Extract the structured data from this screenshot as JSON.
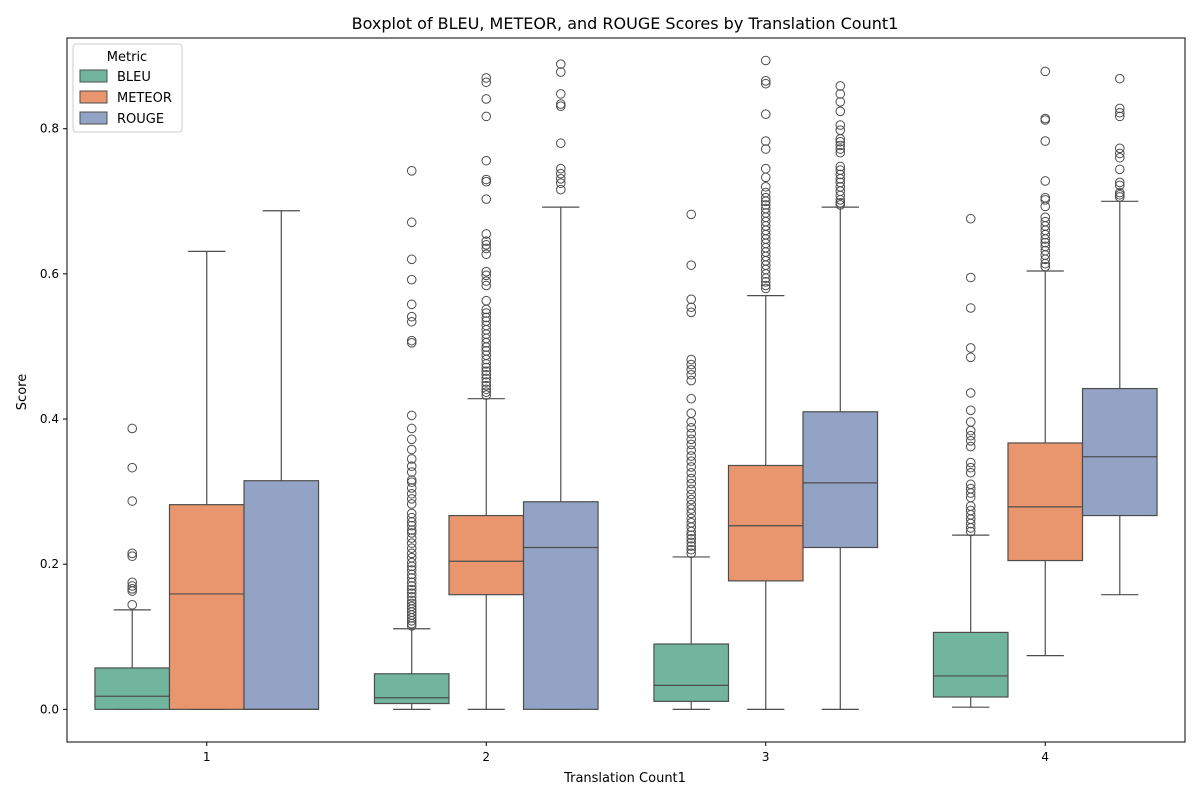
{
  "chart_data": {
    "type": "boxplot",
    "title": "Boxplot of BLEU, METEOR, and ROUGE Scores by Translation Count1",
    "xlabel": "Translation Count1",
    "ylabel": "Score",
    "categories": [
      "1",
      "2",
      "3",
      "4"
    ],
    "ylim": [
      -0.045,
      0.925
    ],
    "yticks": [
      0.0,
      0.2,
      0.4,
      0.6,
      0.8
    ],
    "ytick_labels": [
      "0.0",
      "0.2",
      "0.4",
      "0.6",
      "0.8"
    ],
    "grid": false,
    "legend": {
      "title": "Metric",
      "position": "top-left"
    },
    "series": [
      {
        "name": "BLEU",
        "color": "#72b59f",
        "boxes": [
          {
            "whisker_low": 0.0,
            "q1": 0.0,
            "median": 0.018,
            "q3": 0.057,
            "whisker_high": 0.137,
            "outliers": [
              0.387,
              0.333,
              0.287,
              0.215,
              0.211,
              0.175,
              0.17,
              0.166,
              0.163,
              0.144
            ]
          },
          {
            "whisker_low": 0.0,
            "q1": 0.008,
            "median": 0.016,
            "q3": 0.049,
            "whisker_high": 0.111,
            "outliers": [
              0.742,
              0.671,
              0.62,
              0.592,
              0.558,
              0.541,
              0.534,
              0.508,
              0.505,
              0.405,
              0.387,
              0.372,
              0.358,
              0.345,
              0.335,
              0.327,
              0.316,
              0.313,
              0.305,
              0.297,
              0.29,
              0.283,
              0.27,
              0.264,
              0.258,
              0.253,
              0.247,
              0.243,
              0.236,
              0.229,
              0.222,
              0.215,
              0.209,
              0.202,
              0.197,
              0.192,
              0.186,
              0.181,
              0.175,
              0.17,
              0.165,
              0.16,
              0.155,
              0.15,
              0.146,
              0.142,
              0.138,
              0.134,
              0.13,
              0.126,
              0.122,
              0.118,
              0.115
            ]
          },
          {
            "whisker_low": 0.0,
            "q1": 0.011,
            "median": 0.033,
            "q3": 0.09,
            "whisker_high": 0.21,
            "outliers": [
              0.682,
              0.612,
              0.565,
              0.554,
              0.547,
              0.482,
              0.475,
              0.468,
              0.461,
              0.453,
              0.428,
              0.408,
              0.396,
              0.388,
              0.38,
              0.372,
              0.365,
              0.357,
              0.349,
              0.342,
              0.334,
              0.326,
              0.318,
              0.311,
              0.303,
              0.296,
              0.289,
              0.282,
              0.276,
              0.27,
              0.263,
              0.257,
              0.251,
              0.245,
              0.24,
              0.235,
              0.23,
              0.225,
              0.22,
              0.215
            ]
          },
          {
            "whisker_low": 0.003,
            "q1": 0.017,
            "median": 0.046,
            "q3": 0.106,
            "whisker_high": 0.24,
            "outliers": [
              0.676,
              0.595,
              0.553,
              0.498,
              0.485,
              0.436,
              0.412,
              0.396,
              0.384,
              0.377,
              0.37,
              0.362,
              0.34,
              0.333,
              0.326,
              0.31,
              0.304,
              0.298,
              0.292,
              0.28,
              0.274,
              0.268,
              0.262,
              0.256,
              0.25,
              0.245
            ]
          }
        ]
      },
      {
        "name": "METEOR",
        "color": "#e9966f",
        "boxes": [
          {
            "whisker_low": 0.0,
            "q1": 0.0,
            "median": 0.159,
            "q3": 0.282,
            "whisker_high": 0.631,
            "outliers": []
          },
          {
            "whisker_low": 0.0,
            "q1": 0.158,
            "median": 0.204,
            "q3": 0.267,
            "whisker_high": 0.428,
            "outliers": [
              0.87,
              0.864,
              0.841,
              0.817,
              0.756,
              0.73,
              0.727,
              0.703,
              0.655,
              0.645,
              0.64,
              0.635,
              0.627,
              0.603,
              0.598,
              0.59,
              0.584,
              0.563,
              0.551,
              0.546,
              0.54,
              0.535,
              0.529,
              0.523,
              0.517,
              0.511,
              0.505,
              0.499,
              0.494,
              0.488,
              0.482,
              0.476,
              0.471,
              0.466,
              0.461,
              0.456,
              0.451,
              0.446,
              0.441,
              0.437,
              0.433
            ]
          },
          {
            "whisker_low": 0.0,
            "q1": 0.177,
            "median": 0.253,
            "q3": 0.336,
            "whisker_high": 0.57,
            "outliers": [
              0.894,
              0.866,
              0.862,
              0.82,
              0.783,
              0.772,
              0.745,
              0.733,
              0.72,
              0.712,
              0.705,
              0.7,
              0.695,
              0.69,
              0.684,
              0.678,
              0.672,
              0.666,
              0.66,
              0.654,
              0.648,
              0.642,
              0.636,
              0.63,
              0.624,
              0.618,
              0.612,
              0.606,
              0.6,
              0.594,
              0.589,
              0.584,
              0.58
            ]
          },
          {
            "whisker_low": 0.074,
            "q1": 0.205,
            "median": 0.279,
            "q3": 0.367,
            "whisker_high": 0.604,
            "outliers": [
              0.879,
              0.814,
              0.812,
              0.783,
              0.728,
              0.705,
              0.702,
              0.693,
              0.678,
              0.672,
              0.666,
              0.66,
              0.654,
              0.648,
              0.643,
              0.638,
              0.632,
              0.626,
              0.62,
              0.614,
              0.61
            ]
          }
        ]
      },
      {
        "name": "ROUGE",
        "color": "#93a3c5",
        "boxes": [
          {
            "whisker_low": 0.0,
            "q1": 0.0,
            "median": 0.0,
            "q3": 0.315,
            "whisker_high": 0.687,
            "outliers": []
          },
          {
            "whisker_low": 0.0,
            "q1": 0.0,
            "median": 0.223,
            "q3": 0.286,
            "whisker_high": 0.692,
            "outliers": [
              0.889,
              0.878,
              0.848,
              0.834,
              0.831,
              0.78,
              0.745,
              0.738,
              0.731,
              0.725,
              0.716
            ]
          },
          {
            "whisker_low": 0.0,
            "q1": 0.223,
            "median": 0.312,
            "q3": 0.41,
            "whisker_high": 0.692,
            "outliers": [
              0.859,
              0.848,
              0.837,
              0.824,
              0.805,
              0.798,
              0.786,
              0.782,
              0.777,
              0.772,
              0.767,
              0.748,
              0.743,
              0.737,
              0.731,
              0.726,
              0.72,
              0.714,
              0.708,
              0.702,
              0.698,
              0.695
            ]
          },
          {
            "whisker_low": 0.158,
            "q1": 0.267,
            "median": 0.348,
            "q3": 0.442,
            "whisker_high": 0.7,
            "outliers": [
              0.869,
              0.828,
              0.822,
              0.817,
              0.773,
              0.766,
              0.76,
              0.744,
              0.726,
              0.722,
              0.712,
              0.709,
              0.706
            ]
          }
        ]
      }
    ]
  }
}
